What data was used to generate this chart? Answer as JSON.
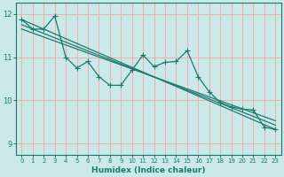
{
  "xlabel": "Humidex (Indice chaleur)",
  "xlim": [
    -0.5,
    23.5
  ],
  "ylim": [
    8.75,
    12.25
  ],
  "yticks": [
    9,
    10,
    11,
    12
  ],
  "xticks": [
    0,
    1,
    2,
    3,
    4,
    5,
    6,
    7,
    8,
    9,
    10,
    11,
    12,
    13,
    14,
    15,
    16,
    17,
    18,
    19,
    20,
    21,
    22,
    23
  ],
  "background_color": "#cce9e9",
  "grid_color": "#e8b4b4",
  "line_color": "#1a7a6e",
  "jagged_x": [
    0,
    1,
    2,
    3,
    4,
    5,
    6,
    7,
    8,
    9,
    10,
    11,
    12,
    13,
    14,
    15,
    16,
    17,
    18,
    19,
    20,
    21,
    22,
    23
  ],
  "jagged_y": [
    11.87,
    11.65,
    11.65,
    11.95,
    11.0,
    10.75,
    10.9,
    10.55,
    10.35,
    10.35,
    10.7,
    11.05,
    10.78,
    10.88,
    10.9,
    11.15,
    10.55,
    10.2,
    9.95,
    9.85,
    9.8,
    9.78,
    9.38,
    9.33
  ],
  "trend1_x": [
    0,
    23
  ],
  "trend1_y": [
    11.87,
    9.33
  ],
  "trend2_x": [
    0,
    23
  ],
  "trend2_y": [
    11.75,
    9.43
  ],
  "trend3_x": [
    0,
    23
  ],
  "trend3_y": [
    11.65,
    9.53
  ]
}
